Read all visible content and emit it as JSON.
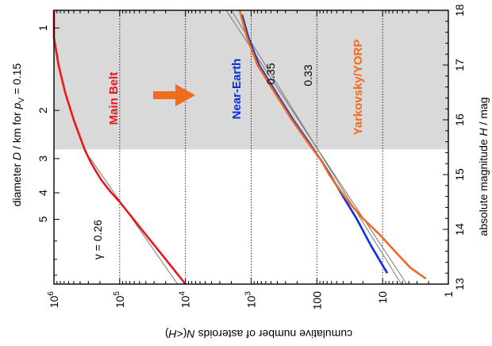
{
  "chart_data": {
    "type": "line",
    "orientation": "rotated-90-ccw",
    "y_axis": {
      "label": "cumulative number of asteroids N(<H)",
      "scale": "log",
      "range": [
        1,
        1000000
      ],
      "reversed": true,
      "ticks": [
        {
          "value": 1000000,
          "label": "10",
          "exp": "6"
        },
        {
          "value": 100000,
          "label": "10",
          "exp": "5"
        },
        {
          "value": 10000,
          "label": "10",
          "exp": "4"
        },
        {
          "value": 1000,
          "label": "10",
          "exp": "3"
        },
        {
          "value": 100,
          "label": "100",
          "exp": ""
        },
        {
          "value": 10,
          "label": "10",
          "exp": ""
        },
        {
          "value": 1,
          "label": "1",
          "exp": ""
        }
      ],
      "dotted_lines": [
        100000,
        10000,
        1000,
        100,
        10
      ]
    },
    "x_axis": {
      "label": "absolute magnitude H / mag",
      "range": [
        13,
        18
      ],
      "ticks": [
        "13",
        "14",
        "15",
        "16",
        "17",
        "18"
      ]
    },
    "diameter_axis": {
      "label_prefix": "diameter D / km  for p",
      "label_sub": "V",
      "label_suffix": " = 0.15",
      "albedo": 0.15,
      "ticks": [
        "1",
        "2",
        "3",
        "4",
        "5"
      ]
    },
    "shaded_region": {
      "H_from": 15.46,
      "H_to": 18
    },
    "series": [
      {
        "name": "Main Belt",
        "color": "#e8171e",
        "points": [
          [
            13.0,
            10000
          ],
          [
            13.3,
            15800
          ],
          [
            13.6,
            25100
          ],
          [
            13.9,
            39800
          ],
          [
            14.2,
            63100
          ],
          [
            14.5,
            100000
          ],
          [
            14.7,
            141000
          ],
          [
            14.9,
            190000
          ],
          [
            15.1,
            240000
          ],
          [
            15.25,
            282000
          ],
          [
            15.45,
            339000
          ],
          [
            16.0,
            501000
          ],
          [
            16.5,
            676000
          ],
          [
            17.0,
            851000
          ],
          [
            17.5,
            1000000
          ],
          [
            18.0,
            1170000
          ]
        ]
      },
      {
        "name": "Near-Earth",
        "color": "#0a2ee0",
        "points": [
          [
            13.2,
            8.5
          ],
          [
            13.7,
            15
          ],
          [
            14.2,
            25
          ],
          [
            14.6,
            40
          ],
          [
            15.0,
            63
          ],
          [
            15.25,
            85
          ],
          [
            15.6,
            135
          ],
          [
            16.0,
            230
          ],
          [
            16.5,
            420
          ],
          [
            17.0,
            760
          ],
          [
            17.5,
            1100
          ],
          [
            17.92,
            1380
          ]
        ]
      },
      {
        "name": "Yarkovsky/YORP",
        "color": "#f26a1b",
        "points": [
          [
            13.1,
            2.2
          ],
          [
            13.3,
            3.8
          ],
          [
            13.6,
            6.5
          ],
          [
            13.9,
            11
          ],
          [
            14.2,
            20
          ],
          [
            14.5,
            33
          ],
          [
            14.8,
            50
          ],
          [
            15.0,
            65
          ],
          [
            15.25,
            85
          ],
          [
            15.6,
            140
          ],
          [
            16.0,
            240
          ],
          [
            16.5,
            440
          ],
          [
            17.0,
            800
          ],
          [
            17.5,
            1150
          ],
          [
            18.0,
            1500
          ]
        ]
      }
    ],
    "fit_lines": [
      {
        "label": "0.26",
        "gamma_label": "γ = 0.26",
        "points": [
          [
            13.0,
            13200
          ],
          [
            15.3,
            282000
          ]
        ]
      },
      {
        "label": "0.35",
        "points": [
          [
            13.0,
            4.3
          ],
          [
            18.0,
            2400
          ]
        ]
      },
      {
        "label": "0.33",
        "points": [
          [
            13.0,
            5.2
          ],
          [
            18.0,
            2000
          ]
        ]
      }
    ],
    "annotations": {
      "arrow_color": "#f26a1b"
    }
  }
}
